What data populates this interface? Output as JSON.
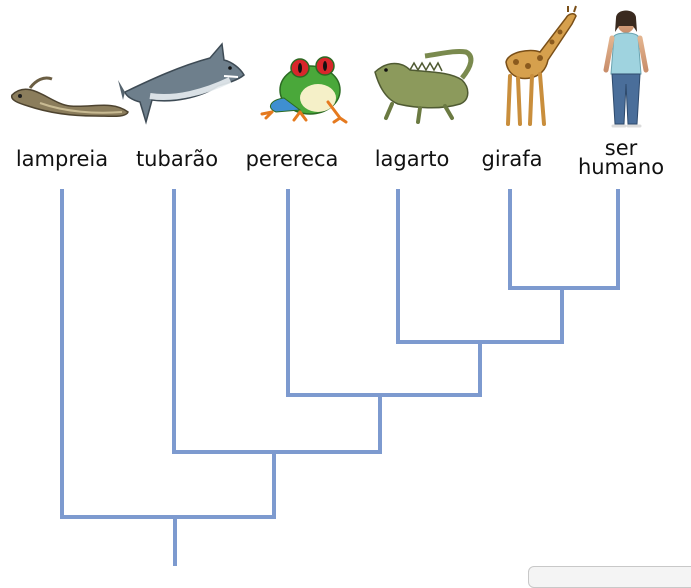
{
  "colors": {
    "branch": "#7d9acf",
    "label": "#111111"
  },
  "taxa": [
    {
      "id": "lampreia",
      "label": "lampreia",
      "icon": "lamprey-icon"
    },
    {
      "id": "tubarao",
      "label": "tubarão",
      "icon": "shark-icon"
    },
    {
      "id": "perereca",
      "label": "perereca",
      "icon": "tree-frog-icon"
    },
    {
      "id": "lagarto",
      "label": "lagarto",
      "icon": "iguana-icon"
    },
    {
      "id": "girafa",
      "label": "girafa",
      "icon": "giraffe-icon"
    },
    {
      "id": "ser_humano",
      "label_line1": "ser",
      "label_line2": "humano",
      "icon": "human-icon"
    }
  ],
  "tree": "(lampreia,(tubarão,(perereca,(lagarto,(girafa,ser humano)))))"
}
